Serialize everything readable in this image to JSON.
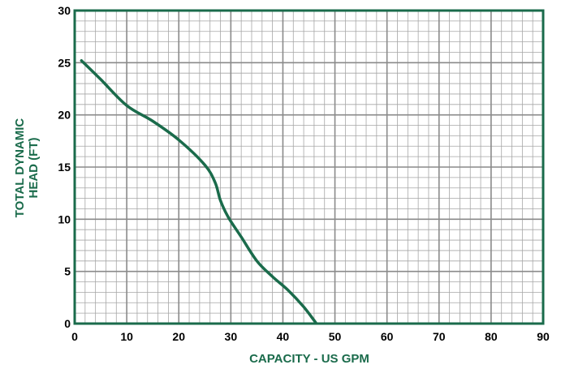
{
  "chart_data": {
    "type": "line",
    "xlabel": "CAPACITY - US GPM",
    "ylabel_line1": "TOTAL DYNAMIC",
    "ylabel_line2": "HEAD (FT)",
    "xlim": [
      0,
      90
    ],
    "ylim": [
      0,
      30
    ],
    "x_ticks": [
      0,
      10,
      20,
      30,
      40,
      50,
      60,
      70,
      80,
      90
    ],
    "y_ticks": [
      0,
      5,
      10,
      15,
      20,
      25,
      30
    ],
    "minor_grid_x": 2,
    "minor_grid_y": 1,
    "grid": true,
    "series": [
      {
        "x": [
          1.3,
          5,
          10,
          15,
          20,
          25,
          27,
          28,
          29.5,
          32,
          35,
          38,
          41,
          44,
          46.3
        ],
        "y": [
          25.2,
          23.4,
          20.9,
          19.4,
          17.6,
          15.2,
          13.5,
          11.8,
          10.2,
          8.3,
          6.0,
          4.5,
          3.2,
          1.6,
          0.1
        ]
      }
    ]
  },
  "colors": {
    "axis": "#1a6b4b",
    "grid": "#a6a6a6",
    "line": "#1a6b4b",
    "label": "#1a6b4b",
    "tick": "#000000"
  }
}
